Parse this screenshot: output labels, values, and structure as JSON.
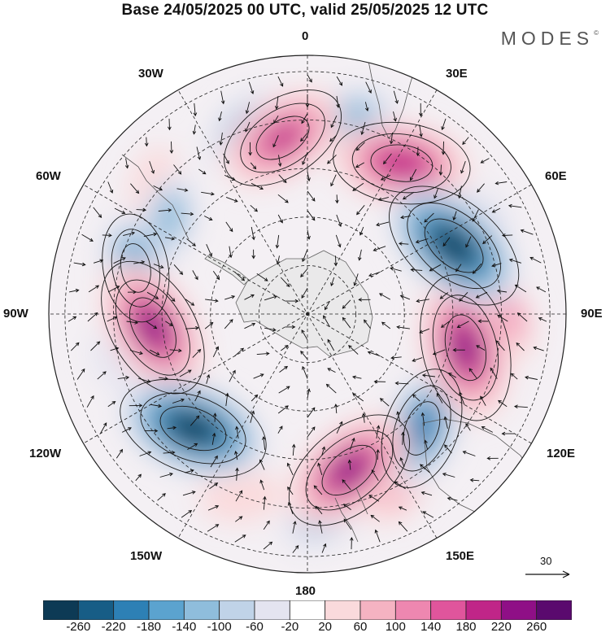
{
  "title": "Base 24/05/2025 00 UTC, valid 25/05/2025 12 UTC",
  "brand": "MODES",
  "brand_mark": "©",
  "longitude_labels": {
    "lon_0": "0",
    "lon_30e": "30E",
    "lon_60e": "60E",
    "lon_90e": "90E",
    "lon_120e": "120E",
    "lon_150e": "150E",
    "lon_180": "180",
    "lon_150w": "150W",
    "lon_120w": "120W",
    "lon_90w": "90W",
    "lon_60w": "60W",
    "lon_30w": "30W"
  },
  "vector_reference": "30",
  "colorbar": {
    "ticks": [
      "-260",
      "-220",
      "-180",
      "-140",
      "-100",
      "-60",
      "-20",
      "20",
      "60",
      "100",
      "140",
      "180",
      "220",
      "260"
    ],
    "colors": [
      "#0d3a55",
      "#175d86",
      "#2d80b5",
      "#5ba3cf",
      "#8fbddc",
      "#c0d3e8",
      "#e4e4f0",
      "#ffffff",
      "#fadadc",
      "#f5b3c2",
      "#ee87b0",
      "#e0559c",
      "#c02588",
      "#8f0f86",
      "#5a0a6e"
    ]
  },
  "anomaly_centers": [
    {
      "lat": -30,
      "lon": -18,
      "value": -120
    },
    {
      "lat": -28,
      "lon": 12,
      "value": -120
    },
    {
      "lat": -35,
      "lon": -8,
      "value": 210
    },
    {
      "lat": -35,
      "lon": 32,
      "value": 230
    },
    {
      "lat": -40,
      "lon": 65,
      "value": -270
    },
    {
      "lat": -40,
      "lon": 102,
      "value": 260
    },
    {
      "lat": -40,
      "lon": 135,
      "value": -190
    },
    {
      "lat": -30,
      "lon": 152,
      "value": 90
    },
    {
      "lat": -40,
      "lon": 165,
      "value": 240
    },
    {
      "lat": -40,
      "lon": -135,
      "value": -270
    },
    {
      "lat": -42,
      "lon": -95,
      "value": 250
    },
    {
      "lat": -35,
      "lon": -75,
      "value": -150
    },
    {
      "lat": -38,
      "lon": -55,
      "value": -90
    },
    {
      "lat": -30,
      "lon": 90,
      "value": 120
    },
    {
      "lat": -28,
      "lon": 175,
      "value": -110
    },
    {
      "lat": -30,
      "lon": -160,
      "value": 80
    },
    {
      "lat": -30,
      "lon": -105,
      "value": -40
    },
    {
      "lat": -28,
      "lon": -50,
      "value": 60
    },
    {
      "lat": -28,
      "lon": 60,
      "value": -30
    }
  ]
}
